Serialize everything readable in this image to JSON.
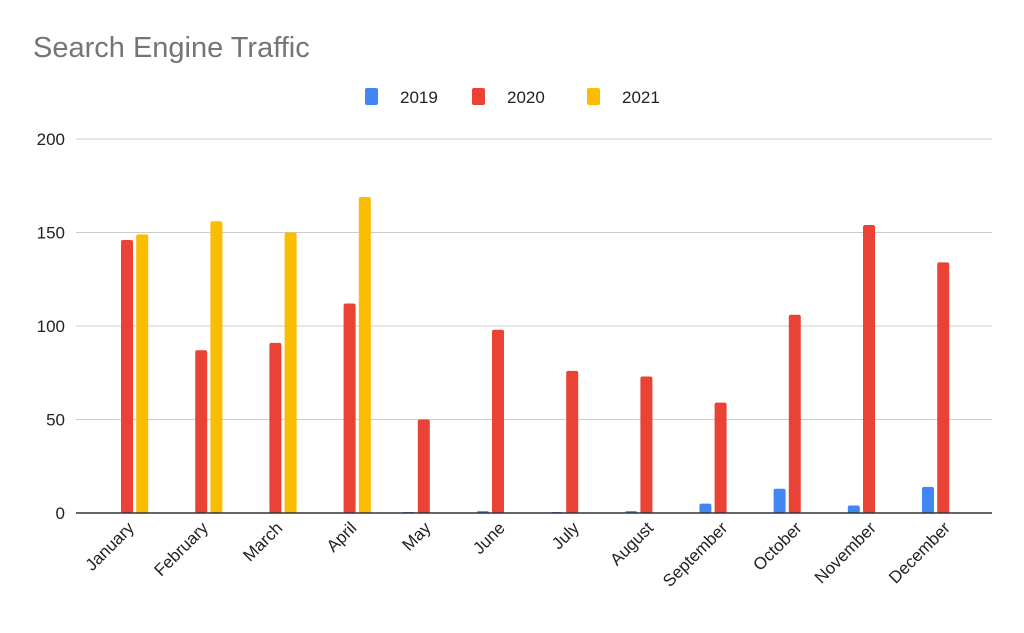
{
  "chart_data": {
    "type": "bar",
    "title": "Search Engine Traffic",
    "xlabel": "",
    "ylabel": "",
    "categories": [
      "January",
      "February",
      "March",
      "April",
      "May",
      "June",
      "July",
      "August",
      "September",
      "October",
      "November",
      "December"
    ],
    "series": [
      {
        "name": "2019",
        "color": "#4285F4",
        "values": [
          null,
          null,
          null,
          null,
          0.3,
          1,
          0.3,
          1,
          5,
          13,
          4,
          14
        ]
      },
      {
        "name": "2020",
        "color": "#EA4335",
        "values": [
          146,
          87,
          91,
          112,
          50,
          98,
          76,
          73,
          59,
          106,
          154,
          134
        ]
      },
      {
        "name": "2021",
        "color": "#FBBC04",
        "values": [
          149,
          156,
          150,
          169,
          null,
          null,
          null,
          null,
          null,
          null,
          null,
          null
        ]
      }
    ],
    "ylim": [
      0,
      200
    ],
    "yticks": [
      0,
      50,
      100,
      150,
      200
    ],
    "grid": true,
    "legend_position": "top-center"
  }
}
